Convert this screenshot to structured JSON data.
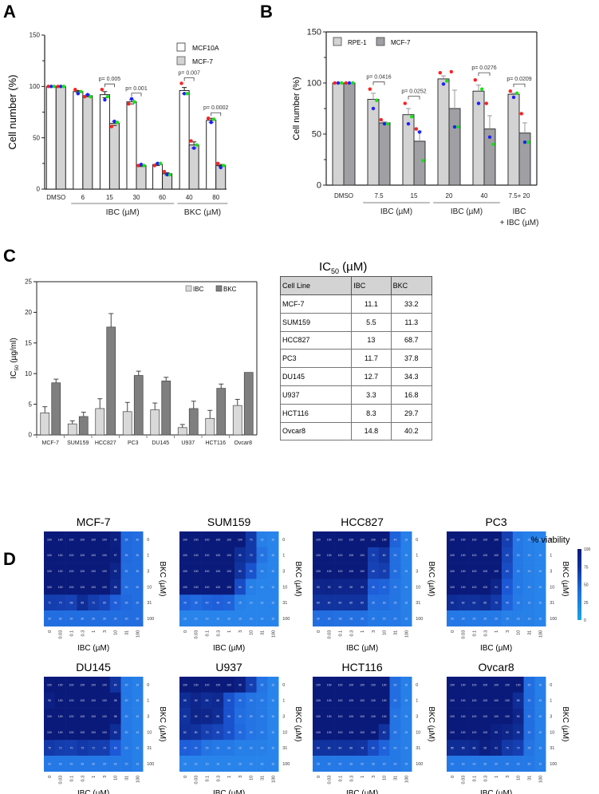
{
  "panels": {
    "A": "A",
    "B": "B",
    "C": "C",
    "D": "D"
  },
  "chart_data": [
    {
      "id": "A",
      "type": "bar",
      "ylabel": "Cell number (%)",
      "ylim": [
        0,
        150
      ],
      "yticks": [
        0,
        50,
        100,
        150
      ],
      "categories": [
        "DMSO",
        "6",
        "15",
        "30",
        "60",
        "40",
        "80"
      ],
      "groups": [
        {
          "label": "IBC (µM)",
          "from": 1,
          "to": 4
        },
        {
          "label": "BKC (µM)",
          "from": 5,
          "to": 6
        }
      ],
      "series": [
        {
          "name": "MCF10A",
          "color": "#ffffff",
          "values": [
            100,
            95,
            92,
            85,
            24,
            96,
            67
          ],
          "errors": [
            0,
            1,
            3,
            2,
            1,
            3,
            2
          ],
          "points": [
            [
              100,
              100,
              100
            ],
            [
              97,
              93,
              95
            ],
            [
              97,
              87,
              90
            ],
            [
              83,
              88,
              85
            ],
            [
              23,
              25,
              25
            ],
            [
              103,
              93,
              93
            ],
            [
              69,
              65,
              68
            ]
          ]
        },
        {
          "name": "MCF-7",
          "color": "#d3d3d3",
          "values": [
            100,
            91,
            64,
            23,
            15,
            43,
            23
          ],
          "errors": [
            0,
            1,
            2,
            1,
            1,
            3,
            1
          ],
          "points": [
            [
              100,
              100,
              100
            ],
            [
              90,
              92,
              90
            ],
            [
              61,
              66,
              65
            ],
            [
              23,
              24,
              23
            ],
            [
              17,
              14,
              14
            ],
            [
              47,
              40,
              43
            ],
            [
              25,
              21,
              23
            ]
          ]
        }
      ],
      "annotations": [
        {
          "text": "p= 0.005",
          "cat": 2
        },
        {
          "text": "p= 0.001",
          "cat": 3
        },
        {
          "text": "p= 0.007",
          "cat": 5
        },
        {
          "text": "p= 0.0002",
          "cat": 6
        }
      ],
      "legend": "top-right"
    },
    {
      "id": "B",
      "type": "bar",
      "ylabel": "Cell number (%)",
      "ylim": [
        0,
        150
      ],
      "yticks": [
        0,
        50,
        100,
        150
      ],
      "categories": [
        "DMSO",
        "7.5",
        "15",
        "20",
        "40",
        "7.5+ 20"
      ],
      "groups": [
        {
          "label": "IBC (µM)",
          "from": 1,
          "to": 2
        },
        {
          "label": "IBC (µM)",
          "from": 3,
          "to": 4
        },
        {
          "label": "IBC\n+ IBC (µM)",
          "from": 5,
          "to": 5
        }
      ],
      "series": [
        {
          "name": "RPE-1",
          "color": "#d3d3d3",
          "values": [
            100,
            84,
            69,
            104,
            92,
            89
          ],
          "errors": [
            0,
            6,
            6,
            3,
            6,
            1
          ],
          "points": [
            [
              100,
              100,
              100
            ],
            [
              94,
              75,
              83
            ],
            [
              80,
              60,
              67
            ],
            [
              110,
              99,
              102
            ],
            [
              103,
              80,
              94
            ],
            [
              92,
              86,
              90
            ]
          ]
        },
        {
          "name": "MCF-7",
          "color": "#a0a0a4",
          "values": [
            100,
            61,
            43,
            75,
            55,
            51
          ],
          "errors": [
            0,
            1,
            10,
            18,
            13,
            10
          ],
          "points": [
            [
              100,
              100,
              100
            ],
            [
              64,
              60,
              60
            ],
            [
              55,
              52,
              24
            ],
            [
              111,
              57,
              57
            ],
            [
              80,
              47,
              40
            ],
            [
              70,
              42,
              42
            ]
          ]
        }
      ],
      "annotations": [
        {
          "text": "p= 0.0416",
          "cat": 1
        },
        {
          "text": "p= 0.0252",
          "cat": 2
        },
        {
          "text": "p= 0.0276",
          "cat": 4
        },
        {
          "text": "p= 0.0209",
          "cat": 5
        }
      ],
      "legend": "top-left"
    },
    {
      "id": "C",
      "type": "bar",
      "ylabel": "IC50 (µg/ml)",
      "ylim": [
        0,
        25
      ],
      "yticks": [
        0,
        5,
        10,
        15,
        20,
        25
      ],
      "categories": [
        "MCF-7",
        "SUM159",
        "HCC827",
        "PC3",
        "DU145",
        "U937",
        "HCT116",
        "Ovcar8"
      ],
      "series": [
        {
          "name": "IBC",
          "color": "#d9d9d9",
          "values": [
            3.6,
            1.8,
            4.3,
            3.8,
            4.1,
            1.2,
            2.7,
            4.8
          ],
          "errors": [
            1.0,
            0.5,
            1.6,
            1.5,
            1.1,
            0.5,
            1.3,
            1.0
          ]
        },
        {
          "name": "BKC",
          "color": "#7f7f7f",
          "values": [
            8.5,
            3.0,
            17.6,
            9.7,
            8.8,
            4.3,
            7.6,
            10.2
          ],
          "errors": [
            0.6,
            0.7,
            2.2,
            0.7,
            0.6,
            1.2,
            0.7,
            0
          ]
        }
      ],
      "legend": "top-right"
    },
    {
      "id": "C-table",
      "type": "table",
      "title": "IC",
      "title_sub": "50",
      "title_unit": " (µM)",
      "columns": [
        "Cell Line",
        "IBC",
        "BKC"
      ],
      "rows": [
        [
          "MCF-7",
          "11.1",
          "33.2"
        ],
        [
          "SUM159",
          "5.5",
          "11.3"
        ],
        [
          "HCC827",
          "13",
          "68.7"
        ],
        [
          "PC3",
          "11.7",
          "37.8"
        ],
        [
          "DU145",
          "12.7",
          "34.3"
        ],
        [
          "U937",
          "3.3",
          "16.8"
        ],
        [
          "HCT116",
          "8.3",
          "29.7"
        ],
        [
          "Ovcar8",
          "14.8",
          "40.2"
        ]
      ]
    },
    {
      "id": "D",
      "type": "heatmap",
      "xlabel": "IBC (µM)",
      "ylabel": "BKC (µM)",
      "x": [
        "0",
        "0.03",
        "0.1",
        "0.3",
        "1",
        "3",
        "10",
        "31",
        "100"
      ],
      "y": [
        "0",
        "1",
        "3",
        "10",
        "31",
        "100"
      ],
      "colorbar": {
        "title": "% viability",
        "ticks": [
          0,
          25,
          50,
          75,
          100
        ],
        "min_color": "#1aa3e0",
        "max_color": "#0a1a7a"
      },
      "maps": [
        {
          "name": "MCF-7",
          "values": [
            [
              100,
              100,
              100,
              100,
              100,
              100,
              95,
              35,
              30
            ],
            [
              100,
              100,
              100,
              100,
              100,
              100,
              97,
              35,
              30
            ],
            [
              100,
              100,
              100,
              100,
              100,
              100,
              92,
              32,
              30
            ],
            [
              100,
              100,
              100,
              100,
              100,
              100,
              88,
              30,
              30
            ],
            [
              72,
              70,
              68,
              85,
              72,
              65,
              45,
              35,
              30
            ],
            [
              30,
              30,
              30,
              30,
              30,
              30,
              30,
              30,
              30
            ]
          ]
        },
        {
          "name": "SUM159",
          "values": [
            [
              100,
              100,
              100,
              100,
              100,
              100,
              75,
              15,
              10
            ],
            [
              100,
              100,
              100,
              100,
              100,
              85,
              75,
              25,
              10
            ],
            [
              100,
              100,
              100,
              100,
              100,
              80,
              55,
              15,
              10
            ],
            [
              100,
              100,
              100,
              100,
              100,
              60,
              15,
              10,
              10
            ],
            [
              40,
              35,
              40,
              45,
              40,
              15,
              10,
              10,
              10
            ],
            [
              10,
              10,
              10,
              10,
              10,
              10,
              10,
              10,
              10
            ]
          ]
        },
        {
          "name": "HCC827",
          "values": [
            [
              100,
              100,
              100,
              100,
              100,
              100,
              100,
              40,
              15
            ],
            [
              100,
              100,
              100,
              100,
              100,
              70,
              80,
              30,
              15
            ],
            [
              100,
              100,
              100,
              100,
              100,
              68,
              72,
              30,
              15
            ],
            [
              90,
              92,
              90,
              90,
              90,
              45,
              40,
              25,
              15
            ],
            [
              80,
              80,
              80,
              80,
              80,
              30,
              30,
              25,
              15
            ],
            [
              30,
              30,
              28,
              28,
              28,
              20,
              20,
              20,
              15
            ]
          ]
        },
        {
          "name": "PC3",
          "values": [
            [
              100,
              100,
              100,
              100,
              100,
              70,
              20,
              15,
              10
            ],
            [
              100,
              100,
              100,
              100,
              100,
              65,
              20,
              15,
              10
            ],
            [
              100,
              100,
              100,
              100,
              100,
              60,
              20,
              15,
              10
            ],
            [
              100,
              100,
              100,
              100,
              92,
              50,
              20,
              15,
              10
            ],
            [
              85,
              82,
              82,
              85,
              75,
              40,
              18,
              15,
              10
            ],
            [
              20,
              20,
              20,
              20,
              20,
              15,
              15,
              15,
              10
            ]
          ]
        },
        {
          "name": "DU145",
          "values": [
            [
              100,
              100,
              100,
              100,
              100,
              100,
              80,
              20,
              15
            ],
            [
              95,
              100,
              100,
              100,
              100,
              100,
              98,
              20,
              15
            ],
            [
              100,
              100,
              100,
              100,
              100,
              100,
              98,
              20,
              15
            ],
            [
              100,
              100,
              100,
              100,
              100,
              100,
              85,
              20,
              15
            ],
            [
              75,
              72,
              70,
              75,
              72,
              70,
              50,
              20,
              15
            ],
            [
              20,
              20,
              20,
              20,
              20,
              20,
              20,
              20,
              15
            ]
          ]
        },
        {
          "name": "U937",
          "values": [
            [
              100,
              100,
              100,
              100,
              100,
              95,
              70,
              25,
              10
            ],
            [
              85,
              90,
              85,
              88,
              55,
              35,
              25,
              20,
              10
            ],
            [
              80,
              92,
              90,
              85,
              55,
              30,
              25,
              20,
              10
            ],
            [
              82,
              80,
              70,
              65,
              55,
              35,
              25,
              20,
              10
            ],
            [
              45,
              40,
              25,
              20,
              20,
              15,
              15,
              15,
              10
            ],
            [
              10,
              10,
              10,
              10,
              10,
              10,
              10,
              10,
              10
            ]
          ]
        },
        {
          "name": "HCT116",
          "values": [
            [
              100,
              100,
              100,
              100,
              100,
              100,
              100,
              30,
              15
            ],
            [
              100,
              100,
              100,
              100,
              100,
              100,
              100,
              30,
              15
            ],
            [
              100,
              100,
              100,
              100,
              100,
              100,
              100,
              25,
              15
            ],
            [
              100,
              100,
              100,
              100,
              100,
              100,
              80,
              25,
              15
            ],
            [
              80,
              80,
              80,
              80,
              78,
              60,
              40,
              20,
              15
            ],
            [
              20,
              20,
              20,
              20,
              20,
              20,
              20,
              20,
              15
            ]
          ]
        },
        {
          "name": "Ovcar8",
          "values": [
            [
              100,
              100,
              100,
              100,
              100,
              100,
              100,
              30,
              15
            ],
            [
              100,
              100,
              100,
              100,
              100,
              100,
              85,
              30,
              15
            ],
            [
              100,
              100,
              100,
              100,
              100,
              100,
              90,
              30,
              15
            ],
            [
              100,
              100,
              100,
              100,
              95,
              92,
              85,
              30,
              15
            ],
            [
              85,
              85,
              88,
              95,
              92,
              75,
              70,
              25,
              15
            ],
            [
              20,
              20,
              20,
              20,
              20,
              20,
              20,
              20,
              15
            ]
          ]
        }
      ]
    }
  ]
}
